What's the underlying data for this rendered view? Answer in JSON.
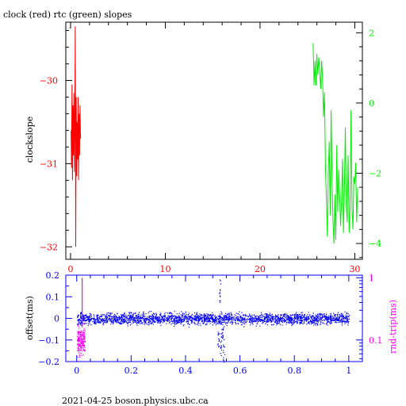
{
  "colors": {
    "clock": "#ff0000",
    "rtc": "#00ee00",
    "offset": "#0000ff",
    "rndtrip": "#ff00ff",
    "frame": "#000000"
  },
  "footer": "2021-04-25  boson.physics.ubc.ca",
  "chart_data": [
    {
      "type": "line",
      "title": "clock (red) rtc (green) slopes",
      "ylabel": "clockslope",
      "xlim": [
        -0.5,
        30.8
      ],
      "xticks": [
        0,
        10,
        20,
        30
      ],
      "ylim": [
        -32.15,
        -29.3
      ],
      "yticks": [
        -32,
        -31,
        -30
      ],
      "y2lim": [
        -4.45,
        2.3
      ],
      "y2ticks": [
        -4,
        -2,
        0,
        2
      ],
      "grid": false,
      "series": [
        {
          "axis": "left",
          "color": "#ff0000",
          "x": [
            0.05,
            0.1,
            0.15,
            0.2,
            0.25,
            0.3,
            0.35,
            0.4,
            0.45,
            0.5,
            0.55,
            0.6,
            0.65,
            0.7,
            0.75,
            0.8,
            0.85,
            0.9,
            0.95,
            1.0,
            1.05
          ],
          "y": [
            -30.6,
            -31.05,
            -30.05,
            -31.2,
            -30.3,
            -30.9,
            -30.15,
            -31.1,
            -30.4,
            -29.35,
            -32.0,
            -30.2,
            -31.15,
            -30.5,
            -30.95,
            -30.2,
            -31.2,
            -30.4,
            -30.9,
            -30.3,
            -30.7
          ]
        },
        {
          "axis": "right",
          "color": "#00ee00",
          "x": [
            25.6,
            25.7,
            25.8,
            25.9,
            26.0,
            26.1,
            26.2,
            26.3,
            26.4,
            26.5,
            26.6,
            26.7,
            26.8,
            26.9,
            27.0,
            27.1,
            27.2,
            27.3,
            27.4,
            27.5,
            27.6,
            27.7,
            27.8,
            27.9,
            28.0,
            28.1,
            28.2,
            28.3,
            28.4,
            28.5,
            28.6,
            28.7,
            28.8,
            28.9,
            29.0,
            29.1,
            29.2,
            29.3,
            29.4,
            29.5,
            29.6,
            29.7,
            29.8,
            29.9,
            30.0,
            30.1,
            30.2,
            30.3
          ],
          "y": [
            1.7,
            0.5,
            1.2,
            0.5,
            1.4,
            0.8,
            1.3,
            0.9,
            0.4,
            1.2,
            0.7,
            -0.4,
            0.3,
            -1.8,
            -2.7,
            -3.8,
            -2.0,
            -1.1,
            -3.2,
            -0.2,
            -2.2,
            -3.4,
            -4.0,
            -2.6,
            -3.9,
            -1.2,
            -3.1,
            -1.9,
            -2.6,
            -3.5,
            -2.8,
            -1.6,
            -3.7,
            -2.5,
            -0.7,
            -2.9,
            -3.4,
            -1.5,
            -3.7,
            -2.9,
            -0.2,
            -3.0,
            -3.6,
            -2.1,
            -2.3,
            -1.7,
            -3.4,
            -2.4
          ]
        }
      ]
    },
    {
      "type": "scatter",
      "xlim": [
        -0.04,
        1.05
      ],
      "xticks": [
        0,
        0.2,
        0.4,
        0.6,
        0.8,
        1
      ],
      "xticklabels": [
        "0",
        "0.2",
        "0.4",
        "0.6",
        "0.8",
        "1"
      ],
      "ylabel": "offset(ms)",
      "ylim": [
        -0.2,
        0.2
      ],
      "yticks": [
        -0.2,
        -0.1,
        0,
        0.1,
        0.2
      ],
      "yticklabels": [
        "-0.2",
        "-0.1",
        "0",
        "0.1",
        "0.2"
      ],
      "y2label": "rnd-trip(ms)",
      "y2scale": "log",
      "y2lim": [
        0.045,
        1.1
      ],
      "y2ticks": [
        0.1,
        1
      ],
      "y2ticklabels": [
        "0.1",
        "1"
      ],
      "series": [
        {
          "name": "offset",
          "color": "#0000ff",
          "x_range": [
            0,
            1
          ],
          "center": 0,
          "band": 0.012,
          "spread": 0.03,
          "excursions": [
            {
              "x": 0.52,
              "y": -0.13
            },
            {
              "x": 0.525,
              "y": 0.18
            },
            {
              "x": 0.53,
              "y": -0.17
            },
            {
              "x": 0.535,
              "y": -0.09
            },
            {
              "x": 0.54,
              "y": -0.2
            }
          ]
        },
        {
          "name": "rndtrip",
          "color": "#ff00ff",
          "x_range": [
            0,
            0.03
          ],
          "typical": 0.1,
          "peak": {
            "x": 0.02,
            "y": 1.0
          }
        }
      ]
    }
  ]
}
